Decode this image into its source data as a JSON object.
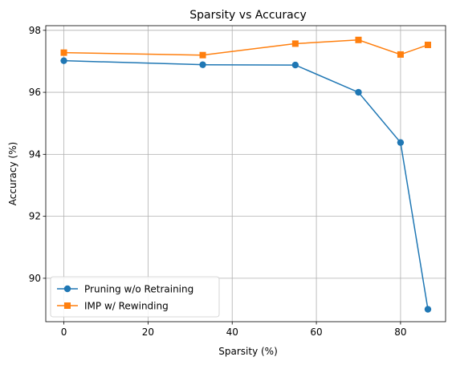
{
  "chart_data": {
    "type": "line",
    "title": "Sparsity vs Accuracy",
    "xlabel": "Sparsity (%)",
    "ylabel": "Accuracy (%)",
    "xlim": [
      -4.3,
      90.7
    ],
    "ylim": [
      88.6,
      98.15
    ],
    "xticks": [
      0,
      20,
      40,
      60,
      80
    ],
    "yticks": [
      90,
      92,
      94,
      96,
      98
    ],
    "grid": true,
    "legend_position": "lower-left",
    "series": [
      {
        "name": "Pruning w/o Retraining",
        "color": "#1f77b4",
        "marker": "circle",
        "x": [
          0,
          33,
          55,
          70,
          80,
          86.5
        ],
        "y": [
          97.02,
          96.89,
          96.88,
          96.0,
          94.38,
          89.0
        ]
      },
      {
        "name": "IMP w/ Rewinding",
        "color": "#ff7f0e",
        "marker": "square",
        "x": [
          0,
          33,
          55,
          70,
          80,
          86.5
        ],
        "y": [
          97.28,
          97.2,
          97.57,
          97.69,
          97.22,
          97.53
        ]
      }
    ]
  }
}
